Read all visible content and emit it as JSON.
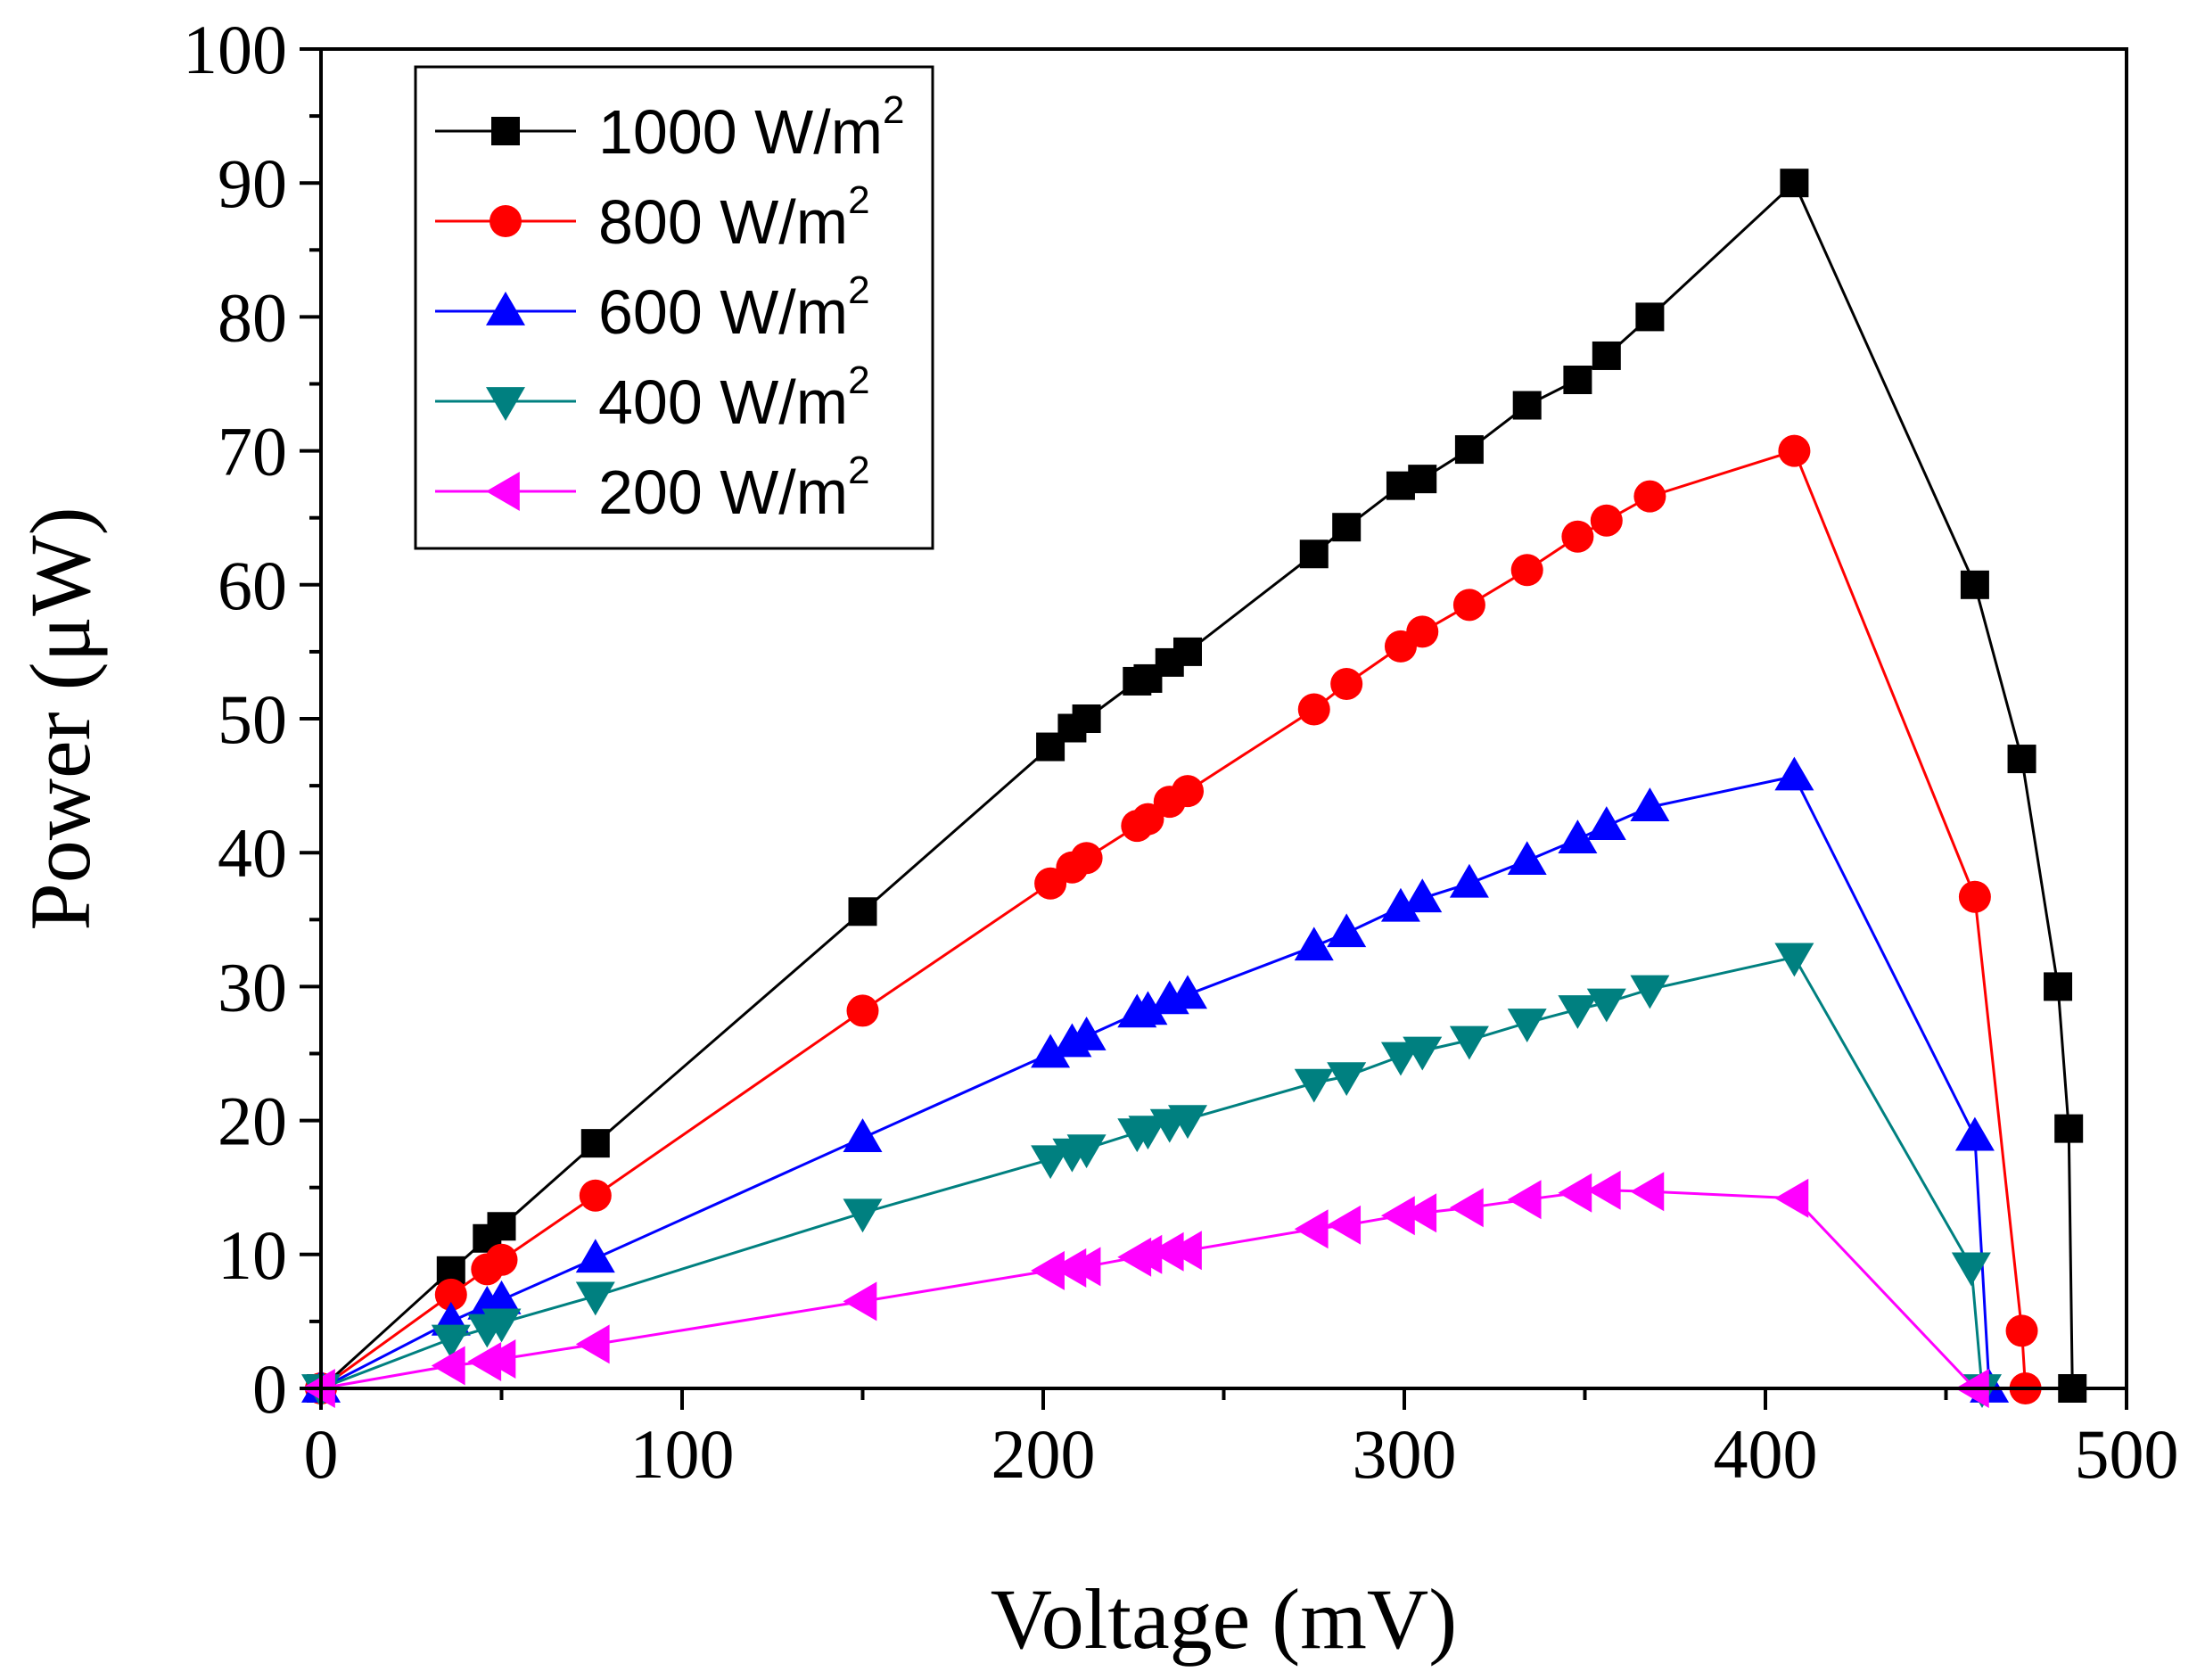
{
  "chart_data": {
    "type": "line",
    "title": "",
    "xlabel": "Voltage (mV)",
    "ylabel": "Power (μW)",
    "xlim": [
      0,
      500
    ],
    "ylim": [
      0,
      100
    ],
    "xticks": [
      0,
      100,
      200,
      300,
      400,
      500
    ],
    "yticks": [
      0,
      10,
      20,
      30,
      40,
      50,
      60,
      70,
      80,
      90,
      100
    ],
    "grid": false,
    "legend_position": "top-left",
    "series": [
      {
        "name": "1000 W/m",
        "sup": "2",
        "color": "#000000",
        "marker": "square",
        "points": [
          [
            0,
            0
          ],
          [
            36,
            8.8
          ],
          [
            46,
            11.2
          ],
          [
            50,
            12.1
          ],
          [
            76,
            18.3
          ],
          [
            150,
            35.6
          ],
          [
            202,
            47.9
          ],
          [
            208,
            49.3
          ],
          [
            212,
            50.0
          ],
          [
            226,
            52.8
          ],
          [
            229,
            53.0
          ],
          [
            235,
            54.2
          ],
          [
            240,
            55.0
          ],
          [
            275,
            62.3
          ],
          [
            284,
            64.3
          ],
          [
            299,
            67.4
          ],
          [
            305,
            67.9
          ],
          [
            318,
            70.1
          ],
          [
            334,
            73.4
          ],
          [
            348,
            75.3
          ],
          [
            356,
            77.1
          ],
          [
            368,
            80.0
          ],
          [
            408,
            90.0
          ],
          [
            458,
            60.0
          ],
          [
            471,
            47.0
          ],
          [
            481,
            30.0
          ],
          [
            484,
            19.4
          ],
          [
            485,
            0
          ]
        ]
      },
      {
        "name": "800 W/m",
        "sup": "2",
        "color": "#ff0000",
        "marker": "circle",
        "points": [
          [
            0,
            0
          ],
          [
            36,
            7.0
          ],
          [
            46,
            8.9
          ],
          [
            50,
            9.6
          ],
          [
            76,
            14.4
          ],
          [
            150,
            28.2
          ],
          [
            202,
            37.7
          ],
          [
            208,
            38.9
          ],
          [
            212,
            39.6
          ],
          [
            226,
            42.0
          ],
          [
            229,
            42.5
          ],
          [
            235,
            43.8
          ],
          [
            240,
            44.6
          ],
          [
            275,
            50.7
          ],
          [
            284,
            52.6
          ],
          [
            299,
            55.4
          ],
          [
            305,
            56.5
          ],
          [
            318,
            58.5
          ],
          [
            334,
            61.1
          ],
          [
            348,
            63.6
          ],
          [
            356,
            64.8
          ],
          [
            368,
            66.6
          ],
          [
            408,
            70.0
          ],
          [
            458,
            36.7
          ],
          [
            471,
            4.3
          ],
          [
            472,
            0
          ]
        ]
      },
      {
        "name": "600 W/m",
        "sup": "2",
        "color": "#0000ff",
        "marker": "triangle-up",
        "points": [
          [
            0,
            0
          ],
          [
            36,
            5.0
          ],
          [
            46,
            6.2
          ],
          [
            50,
            6.6
          ],
          [
            76,
            9.7
          ],
          [
            150,
            18.7
          ],
          [
            202,
            25.0
          ],
          [
            208,
            25.8
          ],
          [
            212,
            26.3
          ],
          [
            226,
            28.0
          ],
          [
            229,
            28.2
          ],
          [
            235,
            29.0
          ],
          [
            240,
            29.4
          ],
          [
            275,
            33.0
          ],
          [
            284,
            34.0
          ],
          [
            299,
            35.9
          ],
          [
            305,
            36.6
          ],
          [
            318,
            37.7
          ],
          [
            334,
            39.4
          ],
          [
            348,
            41.0
          ],
          [
            356,
            42.0
          ],
          [
            368,
            43.4
          ],
          [
            408,
            45.7
          ],
          [
            458,
            18.8
          ],
          [
            462,
            0
          ]
        ]
      },
      {
        "name": "400 W/m",
        "sup": "2",
        "color": "#008080",
        "marker": "triangle-down",
        "points": [
          [
            0,
            0
          ],
          [
            36,
            3.7
          ],
          [
            46,
            4.5
          ],
          [
            50,
            4.9
          ],
          [
            76,
            6.9
          ],
          [
            150,
            13.1
          ],
          [
            202,
            17.1
          ],
          [
            208,
            17.6
          ],
          [
            212,
            17.9
          ],
          [
            226,
            19.1
          ],
          [
            229,
            19.3
          ],
          [
            235,
            19.8
          ],
          [
            240,
            20.1
          ],
          [
            275,
            22.8
          ],
          [
            284,
            23.3
          ],
          [
            299,
            24.8
          ],
          [
            305,
            25.2
          ],
          [
            318,
            26.0
          ],
          [
            334,
            27.3
          ],
          [
            348,
            28.3
          ],
          [
            356,
            28.8
          ],
          [
            368,
            29.8
          ],
          [
            408,
            32.2
          ],
          [
            457,
            9.1
          ],
          [
            460,
            0
          ]
        ]
      },
      {
        "name": "200 W/m",
        "sup": "2",
        "color": "#ff00ff",
        "marker": "triangle-left",
        "points": [
          [
            0,
            0
          ],
          [
            36,
            1.7
          ],
          [
            46,
            2.0
          ],
          [
            50,
            2.2
          ],
          [
            76,
            3.3
          ],
          [
            150,
            6.5
          ],
          [
            202,
            8.8
          ],
          [
            208,
            9.0
          ],
          [
            212,
            9.1
          ],
          [
            226,
            9.8
          ],
          [
            229,
            10.0
          ],
          [
            235,
            10.2
          ],
          [
            240,
            10.3
          ],
          [
            275,
            11.9
          ],
          [
            284,
            12.2
          ],
          [
            299,
            12.9
          ],
          [
            305,
            13.1
          ],
          [
            318,
            13.5
          ],
          [
            334,
            14.1
          ],
          [
            348,
            14.6
          ],
          [
            356,
            14.8
          ],
          [
            368,
            14.7
          ],
          [
            408,
            14.2
          ],
          [
            458,
            0
          ]
        ]
      }
    ]
  }
}
